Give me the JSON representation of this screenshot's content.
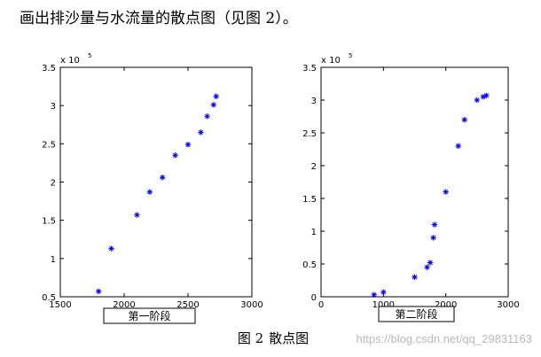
{
  "intro_text": "画出排沙量与水流量的散点图（见图 2）。",
  "figure_caption": "图 2",
  "figure_caption_title": "散点图",
  "watermark": "https://blog.csdn.net/qq_29831163",
  "colors": {
    "marker": "#0000ff",
    "axis": "#000000"
  },
  "chart_data": [
    {
      "type": "scatter",
      "panel_label": "第一阶段",
      "multiplier_label": "x 10",
      "multiplier_exp": "5",
      "xlim": [
        1500,
        3000
      ],
      "ylim": [
        0.5,
        3.5
      ],
      "x_ticks": [
        "1500",
        "2000",
        "2500",
        "3000"
      ],
      "y_ticks": [
        "0.5",
        "1",
        "1.5",
        "2",
        "2.5",
        "3",
        "3.5"
      ],
      "marker": "*",
      "points": [
        {
          "x": 1800,
          "y": 0.57
        },
        {
          "x": 1900,
          "y": 1.13
        },
        {
          "x": 2100,
          "y": 1.57
        },
        {
          "x": 2200,
          "y": 1.87
        },
        {
          "x": 2300,
          "y": 2.06
        },
        {
          "x": 2400,
          "y": 2.35
        },
        {
          "x": 2500,
          "y": 2.49
        },
        {
          "x": 2600,
          "y": 2.65
        },
        {
          "x": 2650,
          "y": 2.86
        },
        {
          "x": 2700,
          "y": 3.01
        },
        {
          "x": 2720,
          "y": 3.12
        }
      ]
    },
    {
      "type": "scatter",
      "panel_label": "第二阶段",
      "multiplier_label": "x 10",
      "multiplier_exp": "5",
      "xlim": [
        0,
        3000
      ],
      "ylim": [
        0,
        3.5
      ],
      "x_ticks": [
        "0",
        "1000",
        "2000",
        "3000"
      ],
      "y_ticks": [
        "0",
        "0.5",
        "1",
        "1.5",
        "2",
        "2.5",
        "3",
        "3.5"
      ],
      "marker": "*",
      "points": [
        {
          "x": 850,
          "y": 0.03
        },
        {
          "x": 1000,
          "y": 0.07
        },
        {
          "x": 1500,
          "y": 0.3
        },
        {
          "x": 1700,
          "y": 0.45
        },
        {
          "x": 1750,
          "y": 0.52
        },
        {
          "x": 1800,
          "y": 0.9
        },
        {
          "x": 1820,
          "y": 1.1
        },
        {
          "x": 2000,
          "y": 1.6
        },
        {
          "x": 2200,
          "y": 2.3
        },
        {
          "x": 2300,
          "y": 2.7
        },
        {
          "x": 2500,
          "y": 3.0
        },
        {
          "x": 2600,
          "y": 3.05
        },
        {
          "x": 2650,
          "y": 3.07
        }
      ]
    }
  ]
}
